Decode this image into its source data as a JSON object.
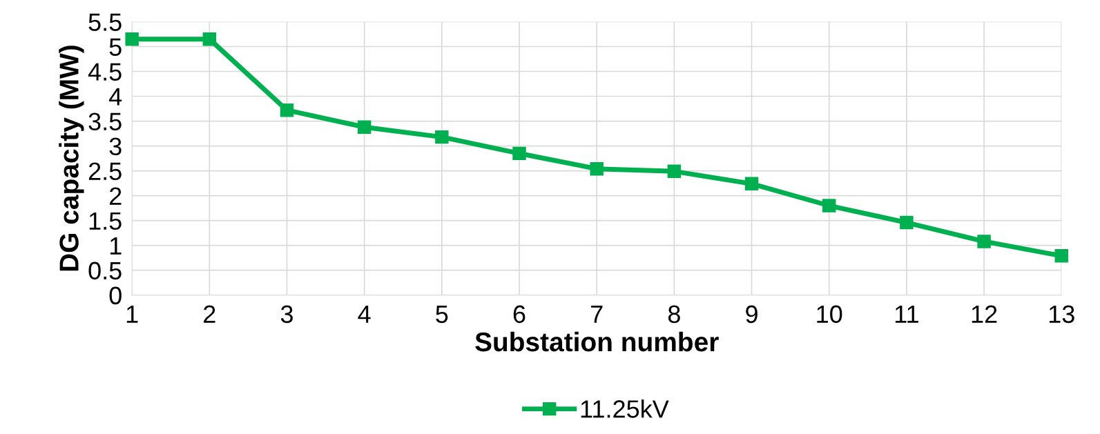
{
  "chart_data": {
    "type": "line",
    "xlabel": "Substation number",
    "ylabel": "DG capacity (MW)",
    "x": [
      1,
      2,
      3,
      4,
      5,
      6,
      7,
      8,
      9,
      10,
      11,
      12,
      13
    ],
    "series": [
      {
        "name": "11.25kV",
        "color": "#00b050",
        "values": [
          5.15,
          5.15,
          3.72,
          3.38,
          3.18,
          2.85,
          2.54,
          2.49,
          2.24,
          1.8,
          1.46,
          1.08,
          0.79
        ]
      }
    ],
    "xlim": [
      1,
      13
    ],
    "xticks": [
      1,
      2,
      3,
      4,
      5,
      6,
      7,
      8,
      9,
      10,
      11,
      12,
      13
    ],
    "ylim": [
      0,
      5.5
    ],
    "yticks": [
      0,
      0.5,
      1,
      1.5,
      2,
      2.5,
      3,
      3.5,
      4,
      4.5,
      5,
      5.5
    ],
    "grid": true,
    "legend": "bottom",
    "marker": "square",
    "line_style": "solid"
  }
}
